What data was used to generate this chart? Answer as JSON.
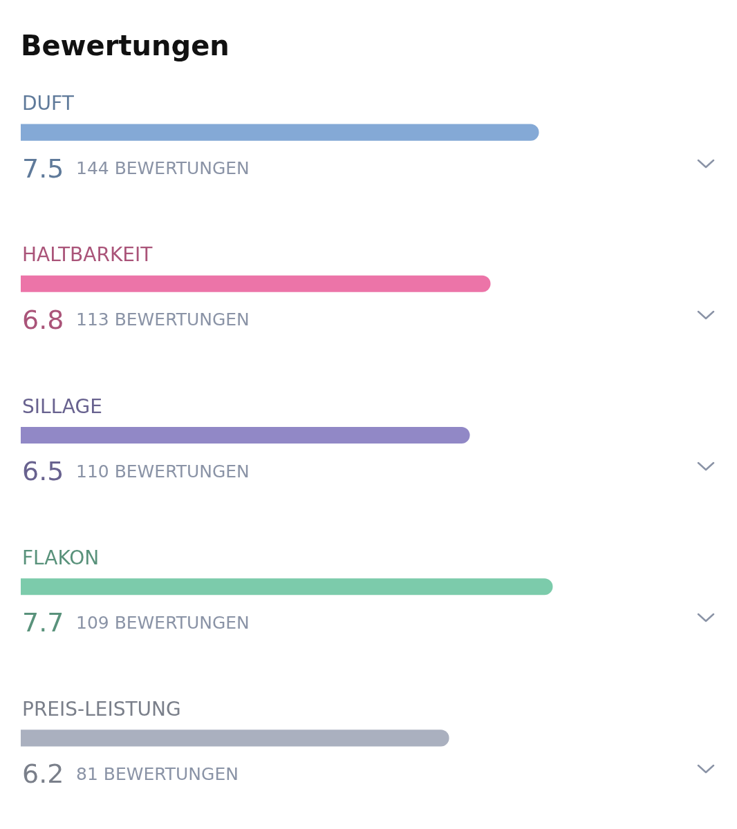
{
  "chart_data": {
    "type": "bar",
    "orientation": "horizontal",
    "title": "Bewertungen",
    "categories": [
      "DUFT",
      "HALTBARKEIT",
      "SILLAGE",
      "FLAKON",
      "PREIS-LEISTUNG"
    ],
    "values": [
      7.5,
      6.8,
      6.5,
      7.7,
      6.2
    ],
    "colors": [
      "#84a9d6",
      "#ec74a8",
      "#9188c6",
      "#7ccbab",
      "#aab0bf"
    ],
    "grid": false,
    "legend": false,
    "data_labels": true,
    "annotations": [
      "144 BEWERTUNGEN",
      "113 BEWERTUNGEN",
      "110 BEWERTUNGEN",
      "109 BEWERTUNGEN",
      "81 BEWERTUNGEN"
    ]
  }
}
